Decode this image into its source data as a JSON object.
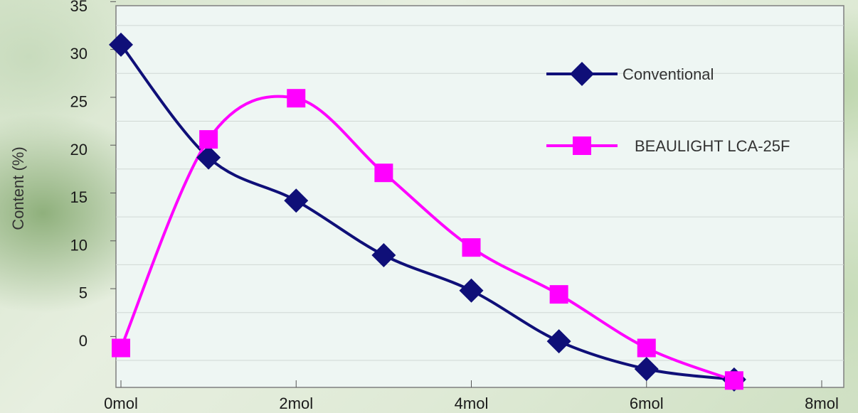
{
  "chart_data": {
    "type": "line",
    "title": "",
    "xlabel": "",
    "ylabel": "Content (%)",
    "x_ticks": [
      "0mol",
      "2mol",
      "4mol",
      "6mol",
      "8mol"
    ],
    "x_tick_values": [
      0,
      2,
      4,
      6,
      8
    ],
    "y_ticks": [
      "0",
      "5",
      "10",
      "15",
      "20",
      "25",
      "30",
      "35"
    ],
    "y_tick_values": [
      0,
      5,
      10,
      15,
      20,
      25,
      30,
      35
    ],
    "xlim": [
      0,
      8
    ],
    "ylim": [
      -2.5,
      37.5
    ],
    "grid": true,
    "legend_position": "top-right",
    "series": [
      {
        "name": "Conventional",
        "color": "#0f0f78",
        "marker": "diamond",
        "x": [
          0,
          1,
          2,
          3,
          4,
          5,
          6,
          7
        ],
        "y": [
          33.0,
          21.2,
          16.7,
          11.0,
          7.3,
          2.0,
          -0.9,
          -2.0
        ]
      },
      {
        "name": "BEAULIGHT LCA-25F",
        "color": "#ff00ff",
        "marker": "square",
        "x": [
          0,
          1,
          2,
          3,
          4,
          5,
          6,
          7
        ],
        "y": [
          1.3,
          23.1,
          27.4,
          19.6,
          11.8,
          6.9,
          1.3,
          -2.1
        ]
      }
    ]
  }
}
